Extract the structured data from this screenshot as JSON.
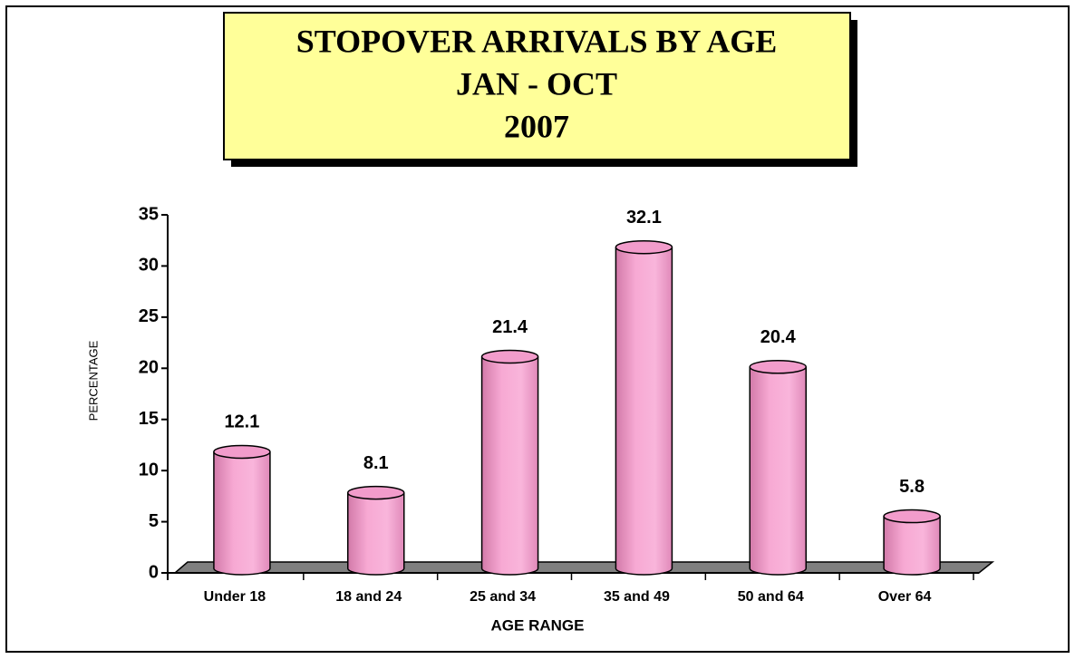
{
  "chart_data": {
    "type": "bar",
    "title": [
      "STOPOVER ARRIVALS BY AGE",
      "JAN - OCT",
      "2007"
    ],
    "x_label": "AGE RANGE",
    "y_label": "PERCENTAGE",
    "categories": [
      "Under 18",
      "18 and 24",
      "25 and 34",
      "35 and 49",
      "50 and 64",
      "Over 64"
    ],
    "values": [
      12.1,
      8.1,
      21.4,
      32.1,
      20.4,
      5.8
    ],
    "color": "#f29ccb",
    "ylim": [
      0,
      35
    ],
    "yticks": [
      0,
      5,
      10,
      15,
      20,
      25,
      30,
      35
    ]
  }
}
